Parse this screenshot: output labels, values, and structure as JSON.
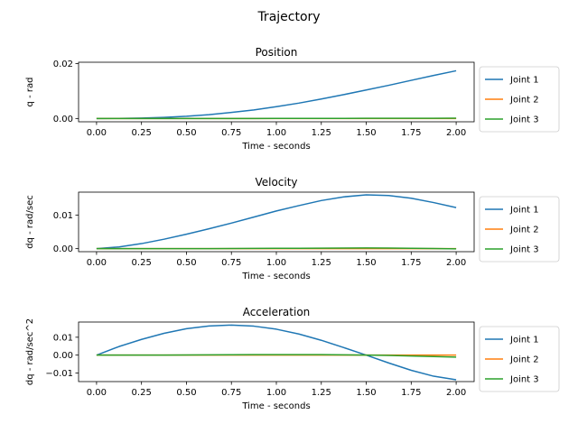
{
  "figure": {
    "title": "Trajectory"
  },
  "colors": {
    "joint1": "#1f77b4",
    "joint2": "#ff7f0e",
    "joint3": "#2ca02c",
    "frame": "#000000",
    "legend_border": "#cccccc"
  },
  "chart_data": [
    {
      "type": "line",
      "title": "Position",
      "xlabel": "Time - seconds",
      "ylabel": "q - rad",
      "xlim": [
        -0.1,
        2.1
      ],
      "ylim": [
        -0.0012,
        0.0205
      ],
      "xticks": [
        0.0,
        0.25,
        0.5,
        0.75,
        1.0,
        1.25,
        1.5,
        1.75,
        2.0
      ],
      "xtick_labels": [
        "0.00",
        "0.25",
        "0.50",
        "0.75",
        "1.00",
        "1.25",
        "1.50",
        "1.75",
        "2.00"
      ],
      "yticks": [
        0.0,
        0.02
      ],
      "ytick_labels": [
        "0.00",
        "0.02"
      ],
      "grid": false,
      "legend_placement": "outside-right",
      "x": [
        0.0,
        0.125,
        0.25,
        0.375,
        0.5,
        0.625,
        0.75,
        0.875,
        1.0,
        1.125,
        1.25,
        1.375,
        1.5,
        1.625,
        1.75,
        1.875,
        2.0
      ],
      "series": [
        {
          "name": "Joint 1",
          "color": "#1f77b4",
          "values": [
            0.0,
            3e-05,
            0.00015,
            0.0004,
            0.0008,
            0.0014,
            0.0022,
            0.0031,
            0.0043,
            0.0056,
            0.0071,
            0.0087,
            0.0104,
            0.0121,
            0.0139,
            0.0157,
            0.0174
          ]
        },
        {
          "name": "Joint 2",
          "color": "#ff7f0e",
          "values": [
            0.0,
            0.0,
            0.0,
            0.0,
            0.0,
            0.0,
            0.0,
            0.0,
            0.0,
            0.0,
            0.0,
            0.0,
            0.0,
            0.0,
            0.0,
            0.0,
            0.0
          ]
        },
        {
          "name": "Joint 3",
          "color": "#2ca02c",
          "values": [
            0.0,
            0.0,
            0.0,
            0.0,
            0.0,
            0.0,
            0.0,
            1e-05,
            2e-05,
            3e-05,
            4e-05,
            5e-05,
            6e-05,
            7e-05,
            8e-05,
            9e-05,
            0.0001
          ]
        }
      ]
    },
    {
      "type": "line",
      "title": "Velocity",
      "xlabel": "Time - seconds",
      "ylabel": "dq - rad/sec",
      "xlim": [
        -0.1,
        2.1
      ],
      "ylim": [
        -0.0009,
        0.0168
      ],
      "xticks": [
        0.0,
        0.25,
        0.5,
        0.75,
        1.0,
        1.25,
        1.5,
        1.75,
        2.0
      ],
      "xtick_labels": [
        "0.00",
        "0.25",
        "0.50",
        "0.75",
        "1.00",
        "1.25",
        "1.50",
        "1.75",
        "2.00"
      ],
      "yticks": [
        0.0,
        0.01
      ],
      "ytick_labels": [
        "0.00",
        "0.01"
      ],
      "grid": false,
      "legend_placement": "outside-right",
      "x": [
        0.0,
        0.125,
        0.25,
        0.375,
        0.5,
        0.625,
        0.75,
        0.875,
        1.0,
        1.125,
        1.25,
        1.375,
        1.5,
        1.625,
        1.75,
        1.875,
        2.0
      ],
      "series": [
        {
          "name": "Joint 1",
          "color": "#1f77b4",
          "values": [
            0.0,
            0.0005,
            0.0015,
            0.0028,
            0.0043,
            0.0059,
            0.0076,
            0.0094,
            0.0112,
            0.0128,
            0.0143,
            0.0154,
            0.016,
            0.0158,
            0.015,
            0.0137,
            0.0122
          ]
        },
        {
          "name": "Joint 2",
          "color": "#ff7f0e",
          "values": [
            0.0,
            0.0,
            0.0,
            0.0,
            0.0,
            0.0,
            0.0,
            0.0,
            0.0,
            0.0,
            0.0,
            0.0,
            0.0,
            0.0,
            0.0,
            0.0,
            0.0
          ]
        },
        {
          "name": "Joint 3",
          "color": "#2ca02c",
          "values": [
            0.0,
            0.0,
            0.0,
            0.0,
            1e-05,
            2e-05,
            4e-05,
            6e-05,
            9e-05,
            0.00012,
            0.00015,
            0.00018,
            0.0002,
            0.00018,
            0.00012,
            4e-05,
            -5e-05
          ]
        }
      ]
    },
    {
      "type": "line",
      "title": "Acceleration",
      "xlabel": "Time - seconds",
      "ylabel": "dq - rad/sec^2",
      "xlim": [
        -0.1,
        2.1
      ],
      "ylim": [
        -0.0148,
        0.0185
      ],
      "xticks": [
        0.0,
        0.25,
        0.5,
        0.75,
        1.0,
        1.25,
        1.5,
        1.75,
        2.0
      ],
      "xtick_labels": [
        "0.00",
        "0.25",
        "0.50",
        "0.75",
        "1.00",
        "1.25",
        "1.50",
        "1.75",
        "2.00"
      ],
      "yticks": [
        -0.01,
        0.0,
        0.01
      ],
      "ytick_labels": [
        "−0.01",
        "0.00",
        "0.01"
      ],
      "grid": false,
      "legend_placement": "outside-right",
      "x": [
        0.0,
        0.125,
        0.25,
        0.375,
        0.5,
        0.625,
        0.75,
        0.875,
        1.0,
        1.125,
        1.25,
        1.375,
        1.5,
        1.625,
        1.75,
        1.875,
        2.0
      ],
      "series": [
        {
          "name": "Joint 1",
          "color": "#1f77b4",
          "values": [
            0.0,
            0.0048,
            0.0088,
            0.0122,
            0.0148,
            0.0163,
            0.0168,
            0.0162,
            0.0145,
            0.0118,
            0.0083,
            0.0042,
            0.0,
            -0.0044,
            -0.0085,
            -0.0118,
            -0.0138
          ]
        },
        {
          "name": "Joint 2",
          "color": "#ff7f0e",
          "values": [
            0.0,
            0.0,
            0.0,
            0.0,
            0.0,
            0.0,
            0.0,
            0.0,
            0.0,
            0.0,
            0.0,
            0.0,
            0.0,
            0.0,
            0.0,
            0.0,
            0.0
          ]
        },
        {
          "name": "Joint 3",
          "color": "#2ca02c",
          "values": [
            0.0,
            0.0,
            0.0,
            5e-05,
            0.0001,
            0.00015,
            0.0002,
            0.00025,
            0.0003,
            0.0003,
            0.00025,
            0.00015,
            0.0,
            -0.0002,
            -0.0005,
            -0.0008,
            -0.0011
          ]
        }
      ]
    }
  ]
}
